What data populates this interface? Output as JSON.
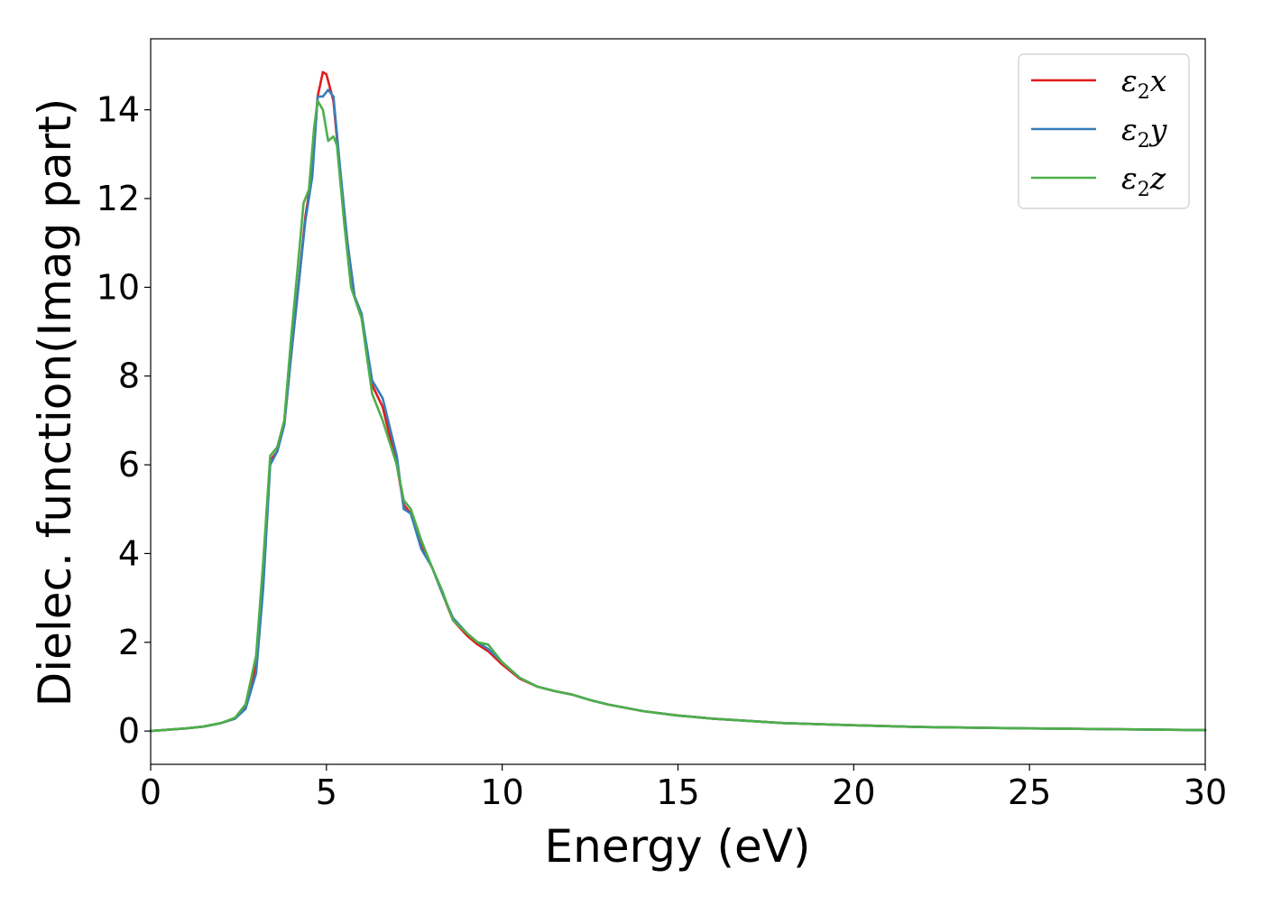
{
  "chart_data": {
    "type": "line",
    "title": "",
    "xlabel": "Energy (eV)",
    "ylabel": "Dielec. function(Imag part)",
    "xlim": [
      0,
      30
    ],
    "ylim": [
      -0.75,
      15.6
    ],
    "xticks": [
      "0",
      "5",
      "10",
      "15",
      "20",
      "25",
      "30"
    ],
    "yticks": [
      "0",
      "2",
      "4",
      "6",
      "8",
      "10",
      "12",
      "14"
    ],
    "grid": false,
    "legend_position": "top-right",
    "series": [
      {
        "name": "ε₂x",
        "legend": {
          "base": "ε",
          "sub": "2",
          "suffix": "x"
        },
        "color": "#e41a1c",
        "points": [
          [
            0,
            0.0
          ],
          [
            1,
            0.06
          ],
          [
            1.5,
            0.1
          ],
          [
            2,
            0.18
          ],
          [
            2.4,
            0.28
          ],
          [
            2.7,
            0.55
          ],
          [
            3.0,
            1.5
          ],
          [
            3.2,
            3.5
          ],
          [
            3.4,
            6.1
          ],
          [
            3.6,
            6.3
          ],
          [
            3.8,
            6.9
          ],
          [
            4.0,
            8.5
          ],
          [
            4.2,
            10.0
          ],
          [
            4.4,
            11.6
          ],
          [
            4.6,
            12.6
          ],
          [
            4.75,
            14.3
          ],
          [
            4.9,
            14.85
          ],
          [
            5.0,
            14.8
          ],
          [
            5.2,
            14.2
          ],
          [
            5.4,
            12.5
          ],
          [
            5.6,
            11.0
          ],
          [
            5.8,
            9.8
          ],
          [
            6.0,
            9.4
          ],
          [
            6.3,
            7.8
          ],
          [
            6.6,
            7.3
          ],
          [
            7.0,
            6.0
          ],
          [
            7.2,
            5.1
          ],
          [
            7.4,
            4.9
          ],
          [
            7.7,
            4.2
          ],
          [
            8.0,
            3.7
          ],
          [
            8.3,
            3.1
          ],
          [
            8.6,
            2.5
          ],
          [
            9.0,
            2.15
          ],
          [
            9.3,
            1.95
          ],
          [
            9.6,
            1.8
          ],
          [
            10.0,
            1.5
          ],
          [
            10.5,
            1.18
          ],
          [
            11.0,
            1.0
          ],
          [
            11.5,
            0.9
          ],
          [
            12.0,
            0.82
          ],
          [
            12.5,
            0.7
          ],
          [
            13.0,
            0.6
          ],
          [
            14.0,
            0.45
          ],
          [
            15.0,
            0.35
          ],
          [
            16.0,
            0.28
          ],
          [
            18.0,
            0.18
          ],
          [
            20.0,
            0.13
          ],
          [
            22.0,
            0.09
          ],
          [
            25.0,
            0.06
          ],
          [
            30.0,
            0.02
          ]
        ]
      },
      {
        "name": "ε₂y",
        "legend": {
          "base": "ε",
          "sub": "2",
          "suffix": "y"
        },
        "color": "#377eb8",
        "points": [
          [
            0,
            0.0
          ],
          [
            1,
            0.06
          ],
          [
            1.5,
            0.1
          ],
          [
            2,
            0.18
          ],
          [
            2.4,
            0.28
          ],
          [
            2.7,
            0.5
          ],
          [
            3.0,
            1.3
          ],
          [
            3.2,
            3.2
          ],
          [
            3.4,
            6.0
          ],
          [
            3.6,
            6.3
          ],
          [
            3.8,
            6.9
          ],
          [
            4.0,
            8.5
          ],
          [
            4.2,
            10.0
          ],
          [
            4.4,
            11.5
          ],
          [
            4.6,
            12.5
          ],
          [
            4.75,
            14.3
          ],
          [
            4.9,
            14.3
          ],
          [
            5.05,
            14.45
          ],
          [
            5.2,
            14.3
          ],
          [
            5.4,
            12.6
          ],
          [
            5.6,
            11.0
          ],
          [
            5.8,
            9.8
          ],
          [
            6.0,
            9.4
          ],
          [
            6.3,
            7.9
          ],
          [
            6.6,
            7.5
          ],
          [
            7.0,
            6.2
          ],
          [
            7.2,
            5.0
          ],
          [
            7.4,
            4.9
          ],
          [
            7.7,
            4.1
          ],
          [
            8.0,
            3.7
          ],
          [
            8.3,
            3.1
          ],
          [
            8.6,
            2.55
          ],
          [
            9.0,
            2.2
          ],
          [
            9.3,
            2.0
          ],
          [
            9.6,
            1.85
          ],
          [
            10.0,
            1.55
          ],
          [
            10.5,
            1.2
          ],
          [
            11.0,
            1.0
          ],
          [
            11.5,
            0.9
          ],
          [
            12.0,
            0.82
          ],
          [
            12.5,
            0.7
          ],
          [
            13.0,
            0.6
          ],
          [
            14.0,
            0.45
          ],
          [
            15.0,
            0.35
          ],
          [
            16.0,
            0.28
          ],
          [
            18.0,
            0.18
          ],
          [
            20.0,
            0.13
          ],
          [
            22.0,
            0.09
          ],
          [
            25.0,
            0.06
          ],
          [
            30.0,
            0.02
          ]
        ]
      },
      {
        "name": "ε₂z",
        "legend": {
          "base": "ε",
          "sub": "2",
          "suffix": "z"
        },
        "color": "#4daf4a",
        "points": [
          [
            0,
            0.0
          ],
          [
            1,
            0.06
          ],
          [
            1.5,
            0.1
          ],
          [
            2,
            0.18
          ],
          [
            2.4,
            0.3
          ],
          [
            2.7,
            0.6
          ],
          [
            3.0,
            1.7
          ],
          [
            3.2,
            3.8
          ],
          [
            3.4,
            6.2
          ],
          [
            3.6,
            6.4
          ],
          [
            3.8,
            7.0
          ],
          [
            4.0,
            8.9
          ],
          [
            4.2,
            10.6
          ],
          [
            4.35,
            11.9
          ],
          [
            4.5,
            12.2
          ],
          [
            4.65,
            13.6
          ],
          [
            4.75,
            14.2
          ],
          [
            4.9,
            14.0
          ],
          [
            5.05,
            13.3
          ],
          [
            5.2,
            13.4
          ],
          [
            5.3,
            13.2
          ],
          [
            5.5,
            11.5
          ],
          [
            5.7,
            10.0
          ],
          [
            6.0,
            9.3
          ],
          [
            6.3,
            7.6
          ],
          [
            6.6,
            7.0
          ],
          [
            7.0,
            6.0
          ],
          [
            7.2,
            5.2
          ],
          [
            7.4,
            5.0
          ],
          [
            7.7,
            4.3
          ],
          [
            8.0,
            3.7
          ],
          [
            8.3,
            3.15
          ],
          [
            8.6,
            2.5
          ],
          [
            9.0,
            2.2
          ],
          [
            9.3,
            2.0
          ],
          [
            9.6,
            1.95
          ],
          [
            10.0,
            1.55
          ],
          [
            10.5,
            1.2
          ],
          [
            11.0,
            1.0
          ],
          [
            11.5,
            0.9
          ],
          [
            12.0,
            0.82
          ],
          [
            12.5,
            0.7
          ],
          [
            13.0,
            0.6
          ],
          [
            14.0,
            0.45
          ],
          [
            15.0,
            0.35
          ],
          [
            16.0,
            0.28
          ],
          [
            18.0,
            0.18
          ],
          [
            20.0,
            0.13
          ],
          [
            22.0,
            0.09
          ],
          [
            25.0,
            0.06
          ],
          [
            30.0,
            0.02
          ]
        ]
      }
    ]
  }
}
